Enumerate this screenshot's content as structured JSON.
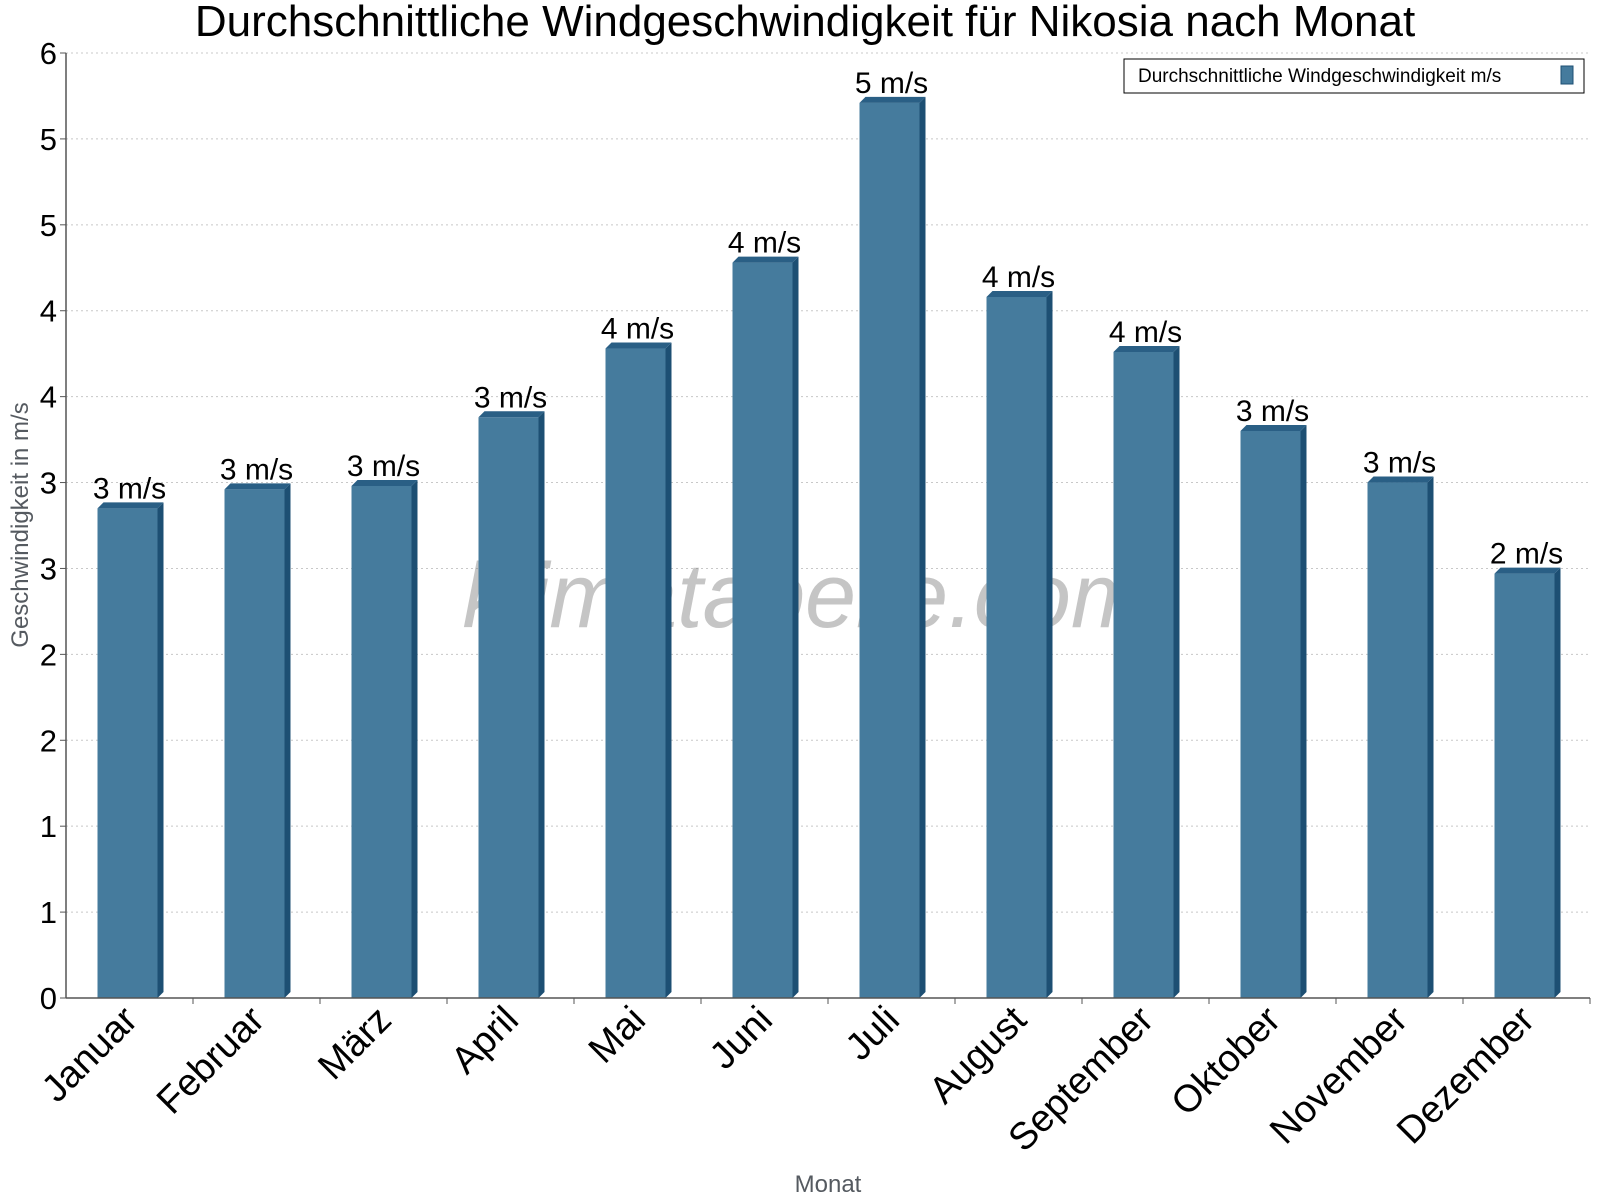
{
  "chart_data": {
    "type": "bar",
    "title": "Durchschnittliche Windgeschwindigkeit für Nikosia nach Monat",
    "xlabel": "Monat",
    "ylabel": "Geschwindigkeit in m/s",
    "watermark": "klimatabelle.com",
    "ylim": [
      0,
      5.5
    ],
    "yticks": [
      0,
      0.5,
      1,
      1.5,
      2,
      2.5,
      3,
      3.5,
      4,
      4.5,
      5,
      5.5
    ],
    "ytick_labels": [
      "0",
      "1",
      "1",
      "2",
      "2",
      "3",
      "3",
      "4",
      "4",
      "5",
      "5",
      "6"
    ],
    "grid": true,
    "legend_position": "top-right",
    "categories": [
      "Januar",
      "Februar",
      "März",
      "April",
      "Mai",
      "Juni",
      "Juli",
      "August",
      "September",
      "Oktober",
      "November",
      "Dezember"
    ],
    "series": [
      {
        "name": "Durchschnittliche Windgeschwindigkeit m/s",
        "color": "#457b9d",
        "values": [
          2.85,
          2.96,
          2.98,
          3.38,
          3.78,
          4.28,
          5.21,
          4.08,
          3.76,
          3.3,
          3.0,
          2.47
        ],
        "labels": [
          "3 m/s",
          "3 m/s",
          "3 m/s",
          "3 m/s",
          "4 m/s",
          "4 m/s",
          "5 m/s",
          "4 m/s",
          "4 m/s",
          "3 m/s",
          "3 m/s",
          "2 m/s"
        ]
      }
    ],
    "colors": {
      "bar_front": "#457b9d",
      "bar_side": "#1d4f73",
      "bar_top": "#2a5f85",
      "grid": "#c8c8c8",
      "axis": "#555555"
    }
  }
}
